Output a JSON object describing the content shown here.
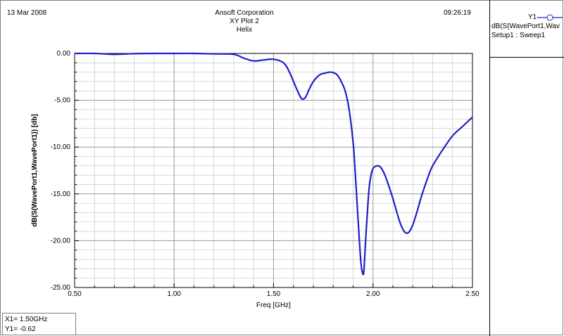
{
  "header": {
    "date": "13 Mar 2008",
    "company": "Ansoft Corporation",
    "plot_name": "XY Plot 2",
    "project": "Helix",
    "time": "09:26:19"
  },
  "legend": {
    "trace_name": "Y1",
    "expression": "dB(S(WavePort1,Wav",
    "setup": "Setup1 : Sweep1"
  },
  "marker": {
    "label": "1",
    "x_readout": "X1= 1.50GHz",
    "y_readout": "Y1= -0.62"
  },
  "colors": {
    "trace": "#1f1fc8",
    "grid": "#c0c0c0",
    "axis": "#000000"
  },
  "chart_data": {
    "type": "line",
    "xlabel": "Freq [GHz]",
    "ylabel": "dB(S(WavePort1,WavePort1)) [db]",
    "xlim": [
      0.5,
      2.5
    ],
    "ylim": [
      -25,
      0
    ],
    "x_ticks": [
      "0.50",
      "1.00",
      "1.50",
      "2.00",
      "2.50"
    ],
    "y_ticks": [
      "0.00",
      "-5.00",
      "-10.00",
      "-15.00",
      "-20.00",
      "-25.00"
    ],
    "grid": true,
    "series": [
      {
        "name": "Y1",
        "x": [
          0.5,
          0.6,
          0.7,
          0.8,
          0.9,
          1.0,
          1.1,
          1.2,
          1.3,
          1.35,
          1.4,
          1.45,
          1.5,
          1.55,
          1.58,
          1.61,
          1.64,
          1.66,
          1.68,
          1.7,
          1.72,
          1.74,
          1.76,
          1.78,
          1.8,
          1.82,
          1.84,
          1.86,
          1.88,
          1.9,
          1.91,
          1.92,
          1.93,
          1.94,
          1.95,
          1.955,
          1.96,
          1.97,
          1.98,
          1.99,
          2.0,
          2.02,
          2.04,
          2.06,
          2.08,
          2.1,
          2.12,
          2.14,
          2.16,
          2.18,
          2.2,
          2.22,
          2.24,
          2.26,
          2.28,
          2.3,
          2.35,
          2.4,
          2.45,
          2.5
        ],
        "y": [
          0.0,
          0.0,
          -0.1,
          -0.02,
          0.0,
          0.0,
          0.0,
          -0.05,
          -0.1,
          -0.5,
          -0.8,
          -0.7,
          -0.62,
          -1.0,
          -2.0,
          -3.5,
          -4.8,
          -4.7,
          -3.8,
          -3.0,
          -2.5,
          -2.2,
          -2.1,
          -2.0,
          -2.05,
          -2.3,
          -3.0,
          -4.0,
          -6.0,
          -9.5,
          -12.5,
          -16.0,
          -19.5,
          -22.5,
          -23.6,
          -23.0,
          -21.0,
          -17.5,
          -14.5,
          -13.0,
          -12.3,
          -12.0,
          -12.2,
          -13.0,
          -14.2,
          -15.5,
          -17.0,
          -18.3,
          -19.1,
          -19.1,
          -18.3,
          -17.0,
          -15.5,
          -14.2,
          -13.0,
          -12.0,
          -10.3,
          -8.8,
          -7.8,
          -6.8
        ]
      }
    ]
  }
}
